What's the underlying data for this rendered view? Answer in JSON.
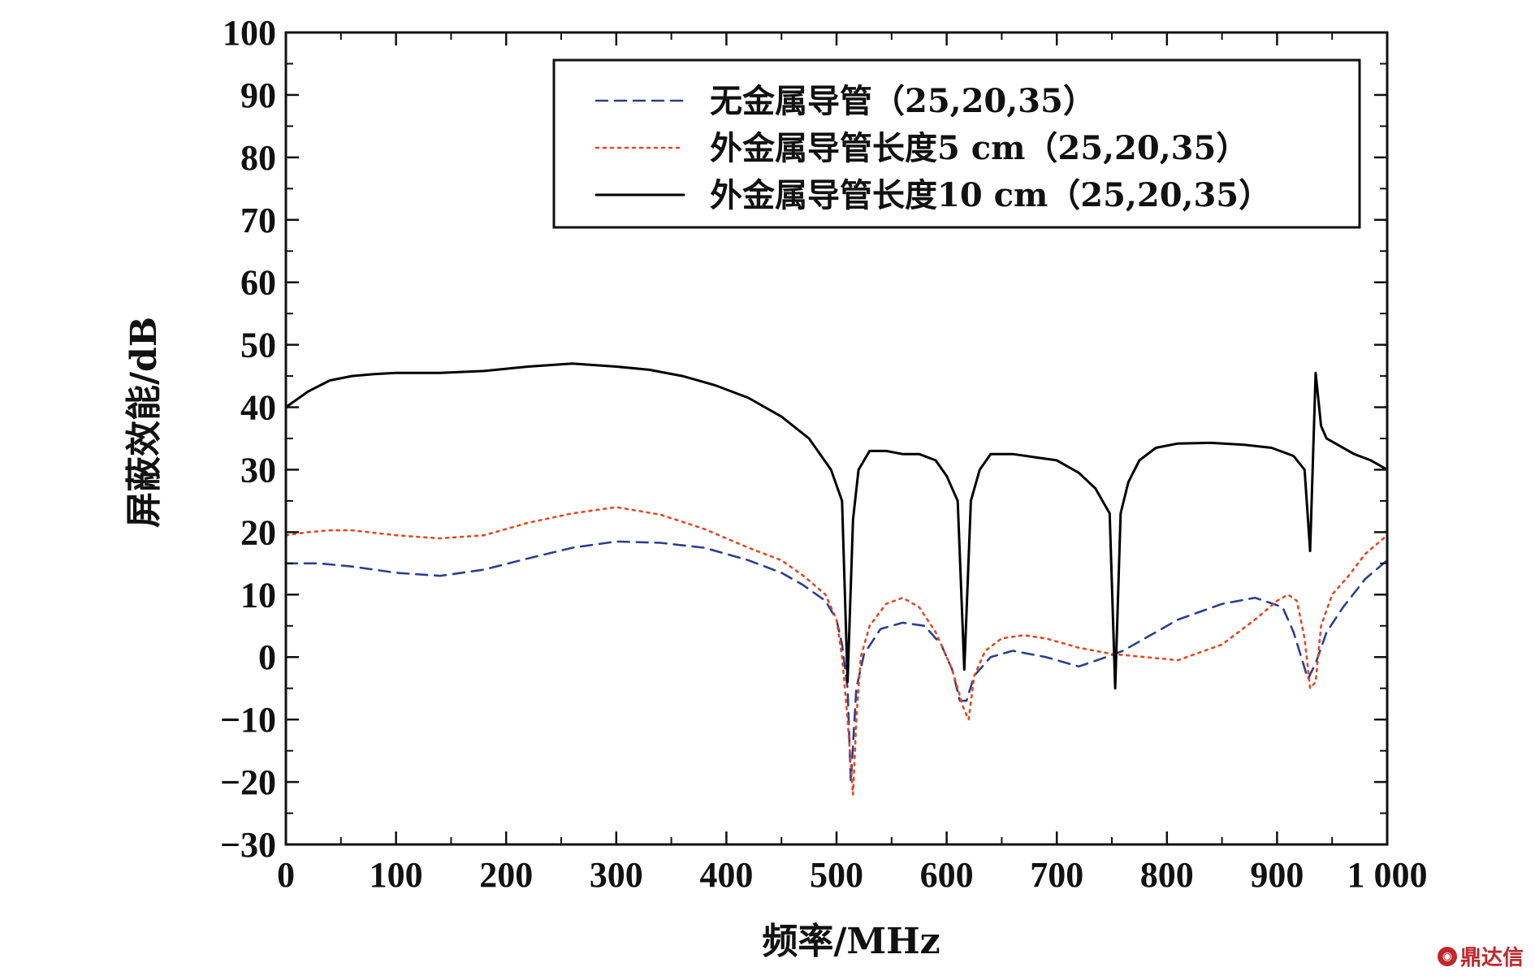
{
  "chart_data": {
    "type": "line",
    "title": "",
    "xlabel": "频率/MHz",
    "ylabel": "屏蔽效能/dB",
    "xlim": [
      0,
      1000
    ],
    "ylim": [
      -30,
      100
    ],
    "xticks": [
      0,
      100,
      200,
      300,
      400,
      500,
      600,
      700,
      800,
      900,
      1000
    ],
    "xtick_labels": [
      "0",
      "100",
      "200",
      "300",
      "400",
      "500",
      "600",
      "700",
      "800",
      "900",
      "1 000"
    ],
    "yticks": [
      -30,
      -20,
      -10,
      0,
      10,
      20,
      30,
      40,
      50,
      60,
      70,
      80,
      90,
      100
    ],
    "ytick_labels": [
      "−30",
      "−20",
      "−10",
      "0",
      "10",
      "20",
      "30",
      "40",
      "50",
      "60",
      "70",
      "80",
      "90",
      "100"
    ],
    "grid": false,
    "legend_position": "top-right",
    "series": [
      {
        "name": "无金属导管（25,20,35）",
        "style": "dashed",
        "color": "#2b3f8f",
        "x": [
          0,
          30,
          60,
          100,
          140,
          180,
          220,
          260,
          300,
          340,
          380,
          420,
          450,
          470,
          490,
          500,
          505,
          510,
          513,
          518,
          525,
          540,
          560,
          580,
          595,
          605,
          612,
          618,
          625,
          640,
          660,
          690,
          720,
          745,
          760,
          780,
          810,
          850,
          880,
          905,
          915,
          922,
          928,
          935,
          945,
          960,
          980,
          1000
        ],
        "y": [
          15,
          15,
          14.5,
          13.5,
          13,
          14,
          15.8,
          17.5,
          18.5,
          18.3,
          17.5,
          15.5,
          13.5,
          11.5,
          9,
          6,
          2,
          -5,
          -20,
          -5,
          0.5,
          4.5,
          5.5,
          5,
          2,
          -2,
          -7,
          -7,
          -3,
          0,
          1,
          0,
          -1.5,
          0,
          1,
          3,
          6,
          8.5,
          9.5,
          8,
          4,
          0,
          -3.5,
          -1,
          4,
          8,
          12.5,
          15.5
        ]
      },
      {
        "name": "外金属导管长度5 cm（25,20,35）",
        "style": "dotted",
        "color": "#e8461f",
        "x": [
          0,
          20,
          40,
          60,
          100,
          140,
          180,
          220,
          260,
          300,
          340,
          380,
          420,
          450,
          470,
          490,
          500,
          505,
          510,
          515,
          518,
          522,
          530,
          545,
          560,
          575,
          590,
          605,
          615,
          620,
          625,
          635,
          650,
          670,
          690,
          720,
          750,
          780,
          810,
          850,
          880,
          900,
          910,
          918,
          925,
          930,
          935,
          940,
          950,
          965,
          980,
          1000
        ],
        "y": [
          19.5,
          20,
          20.3,
          20.3,
          19.5,
          19,
          19.5,
          21.5,
          23,
          24,
          22.8,
          20.5,
          17.5,
          15.5,
          13,
          10,
          6,
          0,
          -10,
          -22,
          -10,
          0,
          5,
          8.5,
          9.5,
          8,
          4,
          -2,
          -8,
          -10,
          -3,
          1,
          3,
          3.5,
          3,
          1.5,
          0.5,
          0,
          -0.5,
          2,
          6,
          9,
          10,
          9,
          3,
          -5,
          -4,
          5,
          10,
          13,
          16.5,
          19.5
        ]
      },
      {
        "name": "外金属导管长度10 cm（25,20,35）",
        "style": "solid",
        "color": "#000000",
        "x": [
          0,
          20,
          40,
          60,
          80,
          100,
          140,
          180,
          220,
          260,
          300,
          330,
          360,
          390,
          420,
          450,
          475,
          495,
          505,
          510,
          515,
          520,
          530,
          545,
          560,
          575,
          590,
          600,
          610,
          616,
          622,
          630,
          640,
          660,
          680,
          700,
          720,
          735,
          748,
          753,
          758,
          765,
          775,
          790,
          810,
          840,
          870,
          895,
          915,
          925,
          930,
          935,
          940,
          945,
          955,
          970,
          985,
          1000
        ],
        "y": [
          40,
          42.5,
          44.3,
          45,
          45.3,
          45.5,
          45.5,
          45.8,
          46.5,
          47,
          46.5,
          46,
          45,
          43.5,
          41.5,
          38.5,
          35,
          30,
          25,
          -4,
          22,
          30,
          33,
          33,
          32.5,
          32.5,
          31.5,
          29,
          25,
          -2,
          25,
          30,
          32.5,
          32.5,
          32,
          31.5,
          29.5,
          27,
          23,
          -5,
          23,
          28,
          31.5,
          33.5,
          34.2,
          34.3,
          34,
          33.5,
          32.2,
          30,
          17,
          45.5,
          37,
          35,
          34,
          32.5,
          31.5,
          30
        ]
      }
    ]
  },
  "watermark": {
    "icon": "dingdaxin-logo-icon",
    "text": "鼎达信"
  }
}
